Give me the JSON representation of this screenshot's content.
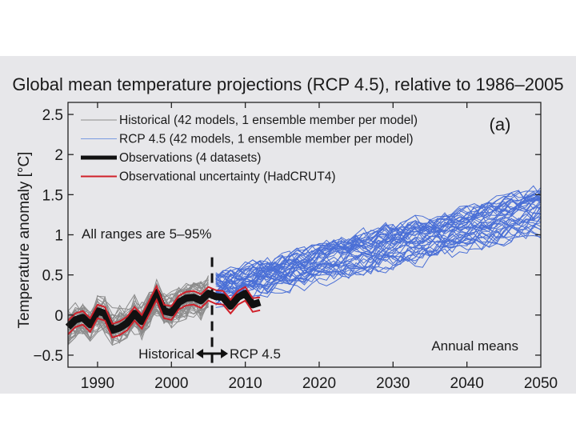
{
  "chart_data": {
    "type": "line",
    "title": "Global mean temperature projections (RCP 4.5), relative to 1986–2005",
    "panel_label": "(a)",
    "xlabel": "",
    "ylabel": "Temperature anomaly  [°C]",
    "ylabel_main": "Temperature anomaly",
    "ylabel_unit": "[°C]",
    "xlim": [
      1986,
      2050
    ],
    "ylim": [
      -0.65,
      2.65
    ],
    "xticks": [
      1990,
      2000,
      2010,
      2020,
      2030,
      2040,
      2050
    ],
    "xtick_labels": [
      "1990",
      "2000",
      "2010",
      "2020",
      "2030",
      "2040",
      "2050"
    ],
    "yticks": [
      -0.5,
      0,
      0.5,
      1,
      1.5,
      2,
      2.5
    ],
    "ytick_labels": [
      "−0.5",
      "0",
      "0.5",
      "1",
      "1.5",
      "2",
      "2.5"
    ],
    "grid": false,
    "legend_position": "top-left",
    "legend": [
      {
        "label": "Historical (42 models, 1 ensemble member per model)",
        "color": "#8c8c8c"
      },
      {
        "label": "RCP 4.5 (42 models, 1 ensemble member per model)",
        "color": "#7a9be0"
      },
      {
        "label": "Observations (4 datasets)",
        "color": "#111111"
      },
      {
        "label": "Observational uncertainty (HadCRUT4)",
        "color": "#d0202a"
      }
    ],
    "annotations": {
      "ranges_note": "All ranges are 5–95%",
      "historical_label": "Historical",
      "rcp_label": "RCP 4.5",
      "means_note": "Annual means",
      "transition_year": 2005.5
    },
    "series": [
      {
        "name": "Observations (4 datasets)",
        "color": "#111111",
        "x": [
          1986,
          1987,
          1988,
          1989,
          1990,
          1991,
          1992,
          1993,
          1994,
          1995,
          1996,
          1997,
          1998,
          1999,
          2000,
          2001,
          2002,
          2003,
          2004,
          2005,
          2006,
          2007,
          2008,
          2009,
          2010,
          2011,
          2012
        ],
        "y": [
          -0.15,
          -0.06,
          -0.03,
          -0.12,
          0.05,
          0.02,
          -0.19,
          -0.16,
          -0.1,
          0.02,
          -0.08,
          0.1,
          0.28,
          0.05,
          0.03,
          0.16,
          0.21,
          0.22,
          0.18,
          0.27,
          0.23,
          0.22,
          0.11,
          0.22,
          0.27,
          0.13,
          0.16
        ]
      },
      {
        "name": "Observational uncertainty (HadCRUT4)",
        "color": "#d0202a",
        "x": [
          1986,
          1987,
          1988,
          1989,
          1990,
          1991,
          1992,
          1993,
          1994,
          1995,
          1996,
          1997,
          1998,
          1999,
          2000,
          2001,
          2002,
          2003,
          2004,
          2005,
          2006,
          2007,
          2008,
          2009,
          2010,
          2011,
          2012
        ],
        "upper": [
          -0.07,
          0.02,
          0.05,
          -0.04,
          0.13,
          0.1,
          -0.11,
          -0.08,
          -0.02,
          0.1,
          0.0,
          0.18,
          0.36,
          0.13,
          0.11,
          0.24,
          0.29,
          0.3,
          0.26,
          0.35,
          0.31,
          0.3,
          0.19,
          0.3,
          0.35,
          0.21,
          0.22
        ],
        "lower": [
          -0.24,
          -0.15,
          -0.12,
          -0.21,
          -0.04,
          -0.07,
          -0.28,
          -0.25,
          -0.19,
          -0.07,
          -0.17,
          0.01,
          0.19,
          -0.04,
          -0.06,
          0.07,
          0.12,
          0.13,
          0.09,
          0.18,
          0.14,
          0.13,
          0.02,
          0.13,
          0.18,
          0.04,
          0.06
        ]
      },
      {
        "name": "Historical (42 models, 1 ensemble member per model)",
        "color": "#8c8c8c",
        "members": 42,
        "x_range": [
          1986,
          2005
        ],
        "ensemble_mean": {
          "x": [
            1986,
            1995,
            2005
          ],
          "y": [
            -0.12,
            0.0,
            0.25
          ]
        },
        "spread_5_95": {
          "x": [
            1986,
            1995,
            2005
          ],
          "y_low": [
            -0.45,
            -0.35,
            -0.05
          ],
          "y_high": [
            0.15,
            0.3,
            0.6
          ]
        }
      },
      {
        "name": "RCP 4.5 (42 models, 1 ensemble member per model)",
        "color": "#4a6fd6",
        "members": 42,
        "x_range": [
          2006,
          2050
        ],
        "ensemble_mean": {
          "x": [
            2006,
            2020,
            2030,
            2040,
            2050
          ],
          "y": [
            0.32,
            0.62,
            0.85,
            1.05,
            1.3
          ]
        },
        "spread_5_95": {
          "x": [
            2006,
            2020,
            2030,
            2040,
            2050
          ],
          "y_low": [
            0.05,
            0.3,
            0.45,
            0.65,
            0.85
          ],
          "y_high": [
            0.65,
            1.05,
            1.35,
            1.6,
            1.85
          ]
        }
      }
    ]
  }
}
